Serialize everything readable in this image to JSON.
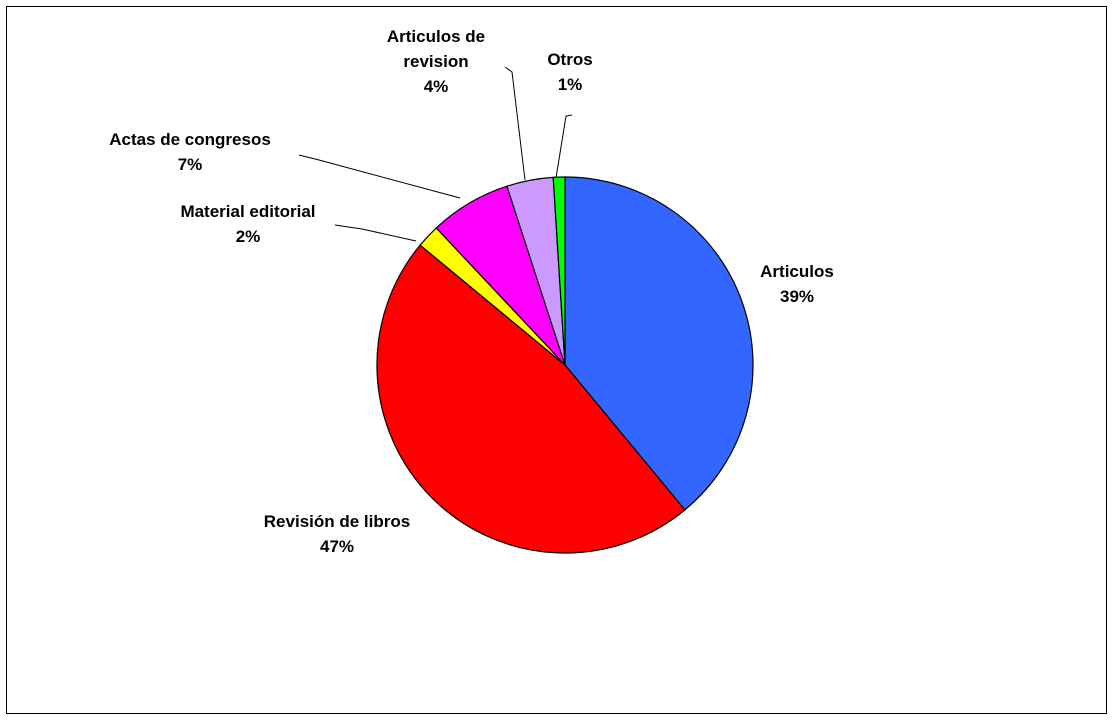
{
  "chart_data": {
    "type": "pie",
    "title": "",
    "slices": [
      {
        "label": "Articulos",
        "value": 39,
        "pct_label": "39%",
        "color": "#3366FF"
      },
      {
        "label": "Revisión de libros",
        "value": 47,
        "pct_label": "47%",
        "color": "#FF0000"
      },
      {
        "label": "Material editorial",
        "value": 2,
        "pct_label": "2%",
        "color": "#FFFF00"
      },
      {
        "label": "Actas de congresos",
        "value": 7,
        "pct_label": "7%",
        "color": "#FF00FF"
      },
      {
        "label": "Articulos de revision",
        "value": 4,
        "pct_label": "4%",
        "color": "#CC99FF"
      },
      {
        "label": "Otros",
        "value": 1,
        "pct_label": "1%",
        "color": "#00FF00"
      }
    ],
    "legend": "none",
    "start_angle": "12 o'clock",
    "direction": "clockwise"
  }
}
